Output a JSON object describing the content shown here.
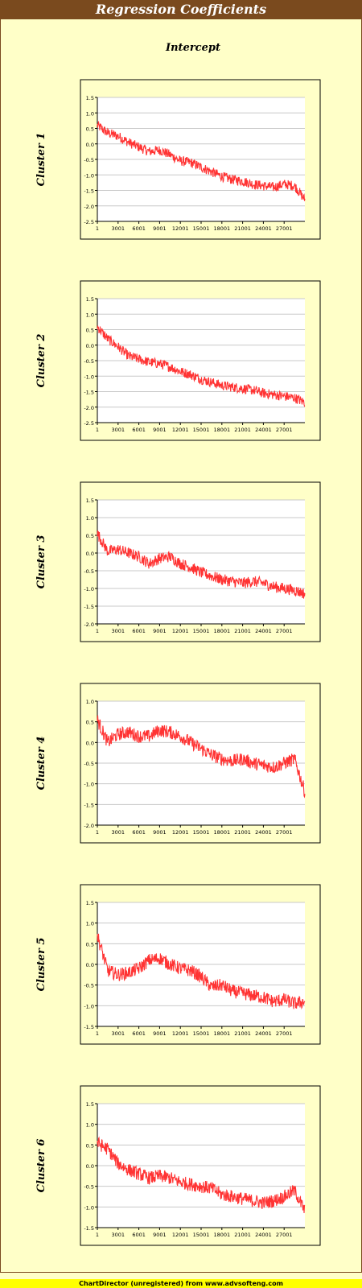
{
  "title": "Regression Coefficients",
  "column_title": "Intercept",
  "footer": "ChartDirector (unregistered) from www.advsofteng.com",
  "colors": {
    "line": "#ff3333",
    "title_bar": "#7a4a1e",
    "background": "#ffffc8",
    "plot_background": "#ffffff",
    "footer": "#ffff00"
  },
  "chart_data": [
    {
      "type": "line",
      "row_label": "Cluster 1",
      "x_ticks": [
        "1",
        "3001",
        "6001",
        "9001",
        "12001",
        "15001",
        "18001",
        "21001",
        "24001",
        "27001"
      ],
      "y_ticks": [
        "1.5",
        "1.0",
        "0.5",
        "0.0",
        "-0.5",
        "-1.0",
        "-1.5",
        "-2.0",
        "-2.5"
      ],
      "ylim": [
        -2.5,
        1.5
      ],
      "xlim": [
        1,
        30000
      ],
      "grid": true,
      "series": [
        {
          "x": [
            1,
            1500,
            3000,
            4500,
            6000,
            7500,
            9000,
            10500,
            12000,
            13500,
            15000,
            16500,
            18000,
            19500,
            21000,
            22500,
            24000,
            25500,
            27000,
            28500,
            30000
          ],
          "values": [
            0.6,
            0.35,
            0.25,
            0.05,
            -0.1,
            -0.25,
            -0.2,
            -0.35,
            -0.55,
            -0.6,
            -0.75,
            -0.9,
            -1.05,
            -1.15,
            -1.2,
            -1.3,
            -1.35,
            -1.4,
            -1.3,
            -1.35,
            -1.8
          ]
        }
      ]
    },
    {
      "type": "line",
      "row_label": "Cluster 2",
      "x_ticks": [
        "1",
        "3001",
        "6001",
        "9001",
        "12001",
        "15001",
        "18001",
        "21001",
        "24001",
        "27001"
      ],
      "y_ticks": [
        "1.5",
        "1.0",
        "0.5",
        "0.0",
        "-0.5",
        "-1.0",
        "-1.5",
        "-2.0",
        "-2.5"
      ],
      "ylim": [
        -2.5,
        1.5
      ],
      "xlim": [
        1,
        30000
      ],
      "grid": true,
      "series": [
        {
          "x": [
            1,
            1500,
            3000,
            4500,
            6000,
            7500,
            9000,
            10500,
            12000,
            13500,
            15000,
            16500,
            18000,
            19500,
            21000,
            22500,
            24000,
            25500,
            27000,
            28500,
            30000
          ],
          "values": [
            0.6,
            0.2,
            -0.05,
            -0.35,
            -0.45,
            -0.55,
            -0.6,
            -0.7,
            -0.85,
            -0.95,
            -1.1,
            -1.2,
            -1.3,
            -1.35,
            -1.4,
            -1.45,
            -1.55,
            -1.6,
            -1.65,
            -1.7,
            -1.85
          ]
        }
      ]
    },
    {
      "type": "line",
      "row_label": "Cluster 3",
      "x_ticks": [
        "1",
        "3001",
        "6001",
        "9001",
        "12001",
        "15001",
        "18001",
        "21001",
        "24001",
        "27001"
      ],
      "y_ticks": [
        "1.5",
        "1.0",
        "0.5",
        "0.0",
        "-0.5",
        "-1.0",
        "-1.5",
        "-2.0"
      ],
      "ylim": [
        -2.0,
        1.5
      ],
      "xlim": [
        1,
        30000
      ],
      "grid": true,
      "series": [
        {
          "x": [
            1,
            1500,
            3000,
            4500,
            6000,
            7500,
            9000,
            10500,
            12000,
            13500,
            15000,
            16500,
            18000,
            19500,
            21000,
            22500,
            24000,
            25500,
            27000,
            28500,
            30000
          ],
          "values": [
            0.55,
            0.05,
            0.1,
            0.0,
            -0.1,
            -0.3,
            -0.15,
            -0.1,
            -0.3,
            -0.4,
            -0.55,
            -0.65,
            -0.75,
            -0.8,
            -0.85,
            -0.8,
            -0.85,
            -0.95,
            -1.0,
            -1.05,
            -1.15
          ]
        }
      ]
    },
    {
      "type": "line",
      "row_label": "Cluster 4",
      "x_ticks": [
        "1",
        "3001",
        "6001",
        "9001",
        "12001",
        "15001",
        "18001",
        "21001",
        "24001",
        "27001"
      ],
      "y_ticks": [
        "1.0",
        "0.5",
        "0.0",
        "-0.5",
        "-1.0",
        "-1.5",
        "-2.0"
      ],
      "ylim": [
        -2.0,
        1.0
      ],
      "xlim": [
        1,
        30000
      ],
      "grid": true,
      "series": [
        {
          "x": [
            1,
            1500,
            3000,
            4500,
            6000,
            7500,
            9000,
            10500,
            12000,
            13500,
            15000,
            16500,
            18000,
            19500,
            21000,
            22500,
            24000,
            25500,
            27000,
            28500,
            30000
          ],
          "values": [
            0.55,
            0.0,
            0.2,
            0.25,
            0.15,
            0.15,
            0.3,
            0.25,
            0.15,
            0.0,
            -0.15,
            -0.3,
            -0.4,
            -0.45,
            -0.4,
            -0.5,
            -0.55,
            -0.6,
            -0.5,
            -0.4,
            -1.2
          ]
        }
      ]
    },
    {
      "type": "line",
      "row_label": "Cluster 5",
      "x_ticks": [
        "1",
        "3001",
        "6001",
        "9001",
        "12001",
        "15001",
        "18001",
        "21001",
        "24001",
        "27001"
      ],
      "y_ticks": [
        "1.5",
        "1.0",
        "0.5",
        "0.0",
        "-0.5",
        "-1.0",
        "-1.5"
      ],
      "ylim": [
        -1.5,
        1.5
      ],
      "xlim": [
        1,
        30000
      ],
      "grid": true,
      "series": [
        {
          "x": [
            1,
            1500,
            3000,
            4500,
            6000,
            7500,
            9000,
            10500,
            12000,
            13500,
            15000,
            16500,
            18000,
            19500,
            21000,
            22500,
            24000,
            25500,
            27000,
            28500,
            30000
          ],
          "values": [
            0.7,
            -0.15,
            -0.25,
            -0.2,
            -0.1,
            0.1,
            0.15,
            0.0,
            -0.1,
            -0.15,
            -0.3,
            -0.55,
            -0.5,
            -0.65,
            -0.7,
            -0.75,
            -0.8,
            -0.9,
            -0.85,
            -0.95,
            -0.9
          ]
        }
      ]
    },
    {
      "type": "line",
      "row_label": "Cluster 6",
      "x_ticks": [
        "1",
        "3001",
        "6001",
        "9001",
        "12001",
        "15001",
        "18001",
        "21001",
        "24001",
        "27001"
      ],
      "y_ticks": [
        "1.5",
        "1.0",
        "0.5",
        "0.0",
        "-0.5",
        "-1.0",
        "-1.5"
      ],
      "ylim": [
        -1.5,
        1.5
      ],
      "xlim": [
        1,
        30000
      ],
      "grid": true,
      "series": [
        {
          "x": [
            1,
            1500,
            3000,
            4500,
            6000,
            7500,
            9000,
            10500,
            12000,
            13500,
            15000,
            16500,
            18000,
            19500,
            21000,
            22500,
            24000,
            25500,
            27000,
            28500,
            30000
          ],
          "values": [
            0.55,
            0.4,
            0.05,
            -0.1,
            -0.2,
            -0.3,
            -0.25,
            -0.3,
            -0.4,
            -0.45,
            -0.5,
            -0.55,
            -0.7,
            -0.75,
            -0.8,
            -0.85,
            -0.9,
            -0.85,
            -0.75,
            -0.6,
            -1.1
          ]
        }
      ]
    }
  ]
}
